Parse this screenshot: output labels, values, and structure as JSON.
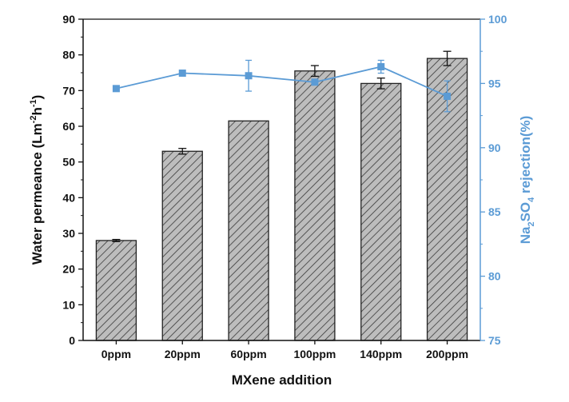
{
  "chart_data": {
    "type": "bar",
    "categories": [
      "0ppm",
      "20ppm",
      "60ppm",
      "100ppm",
      "140ppm",
      "200ppm"
    ],
    "xlabel": "MXene addition",
    "ylabel": {
      "main": "Water permeance (Lm",
      "sup1": "-2",
      "mid": "h",
      "sup2": "-1",
      "end": ")"
    },
    "y2label": {
      "pre": "Na",
      "sub1": "2",
      "mid": "SO",
      "sub2": "4",
      "end": " rejection(%)"
    },
    "ylim": [
      0,
      90
    ],
    "yticks": [
      0,
      10,
      20,
      30,
      40,
      50,
      60,
      70,
      80,
      90
    ],
    "y2lim": [
      75,
      100
    ],
    "y2ticks": [
      75,
      80,
      85,
      90,
      95,
      100
    ],
    "series": [
      {
        "axis": "left",
        "kind": "bar",
        "values": [
          28,
          53,
          61.5,
          75.5,
          72,
          79
        ],
        "errors": [
          0.3,
          0.8,
          0,
          1.5,
          1.5,
          2
        ]
      },
      {
        "axis": "right",
        "kind": "line",
        "values": [
          94.6,
          95.8,
          95.6,
          95.1,
          96.3,
          94.0
        ],
        "errors": [
          0,
          0.2,
          1.2,
          0.2,
          0.5,
          1.2
        ]
      }
    ],
    "colors": {
      "bar_fill": "#bdbdbd",
      "bar_hatch": "#3a3a3a",
      "bar_edge": "#222222",
      "line": "#5b9bd5",
      "left_axis": "#111111",
      "right_axis": "#5b9bd5"
    },
    "hatch": "diagonal"
  }
}
